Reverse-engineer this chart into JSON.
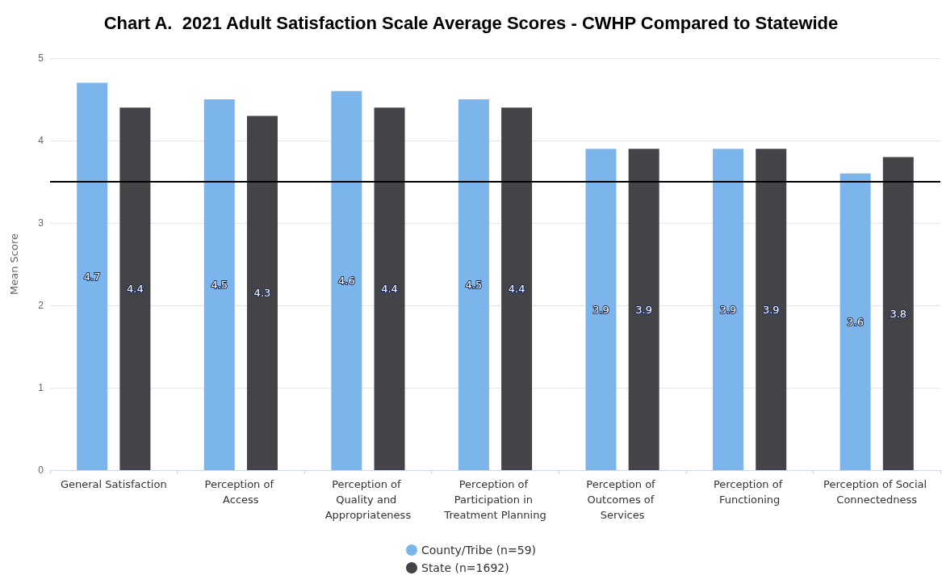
{
  "chart_data": {
    "type": "bar",
    "title": "Chart A.  2021 Adult Satisfaction Scale Average Scores - CWHP Compared to Statewide",
    "ylabel": "Mean Score",
    "categories": [
      "General Satisfaction",
      "Perception of Access",
      "Perception of Quality and Appropriateness",
      "Perception of Participation in Treatment Planning",
      "Perception of Outcomes of Services",
      "Perception of Functioning",
      "Perception of Social Connectedness"
    ],
    "series": [
      {
        "name": "County/Tribe (n=59)",
        "color": "#7cb5ec",
        "values": [
          4.7,
          4.5,
          4.6,
          4.5,
          3.9,
          3.9,
          3.6
        ]
      },
      {
        "name": "State (n=1692)",
        "color": "#434348",
        "values": [
          4.4,
          4.3,
          4.4,
          4.4,
          3.9,
          3.9,
          3.8
        ]
      }
    ],
    "ylim": [
      0,
      5
    ],
    "yticks": [
      0,
      1,
      2,
      3,
      4,
      5
    ],
    "grid": "y",
    "legend": "bottom",
    "data_labels": true,
    "ref_lines": [
      {
        "axis": "y",
        "value": 3.5,
        "color": "#000000"
      }
    ]
  }
}
